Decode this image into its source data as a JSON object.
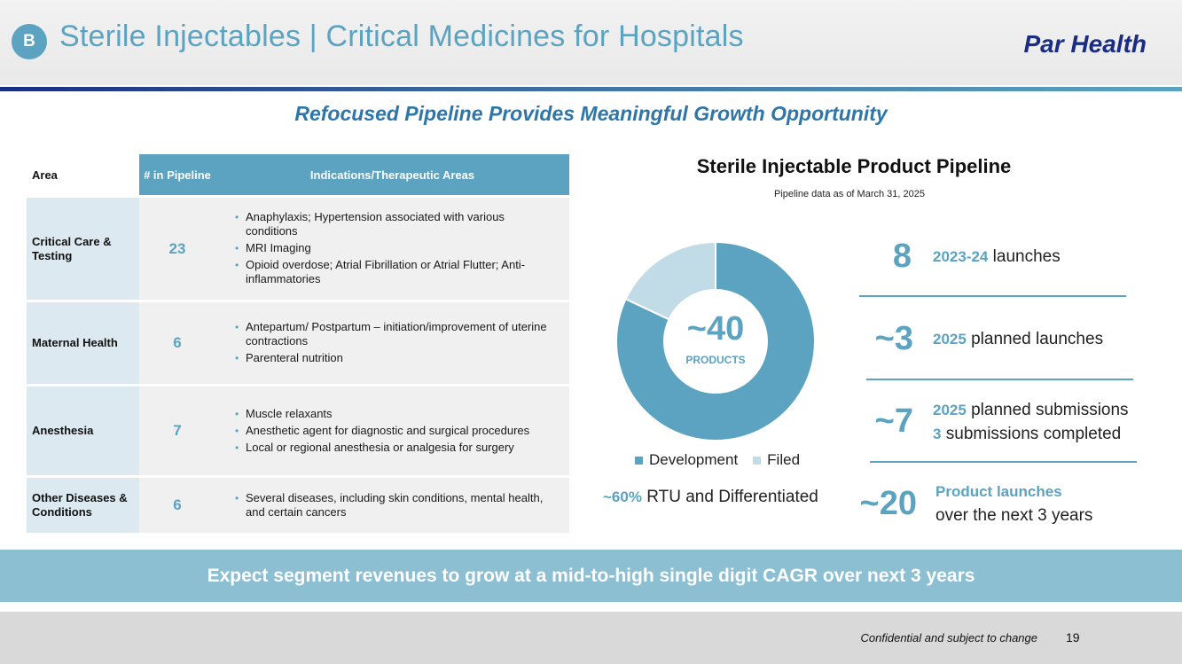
{
  "header": {
    "badge": "B",
    "title": "Sterile Injectables | Critical Medicines for Hospitals",
    "brand": "Par Health"
  },
  "subtitle": "Refocused Pipeline Provides Meaningful Growth Opportunity",
  "table": {
    "headers": {
      "area": "Area",
      "num": "# in Pipeline",
      "indications": "Indications/Therapeutic Areas"
    },
    "rows": [
      {
        "area": "Critical Care & Testing",
        "num": "23",
        "bullets": [
          "Anaphylaxis; Hypertension associated with various conditions",
          "MRI Imaging",
          "Opioid overdose; Atrial Fibrillation or Atrial Flutter; Anti-inflammatories"
        ]
      },
      {
        "area": "Maternal Health",
        "num": "6",
        "bullets": [
          "Antepartum/ Postpartum – initiation/improvement of uterine contractions",
          "Parenteral nutrition"
        ]
      },
      {
        "area": "Anesthesia",
        "num": "7",
        "bullets": [
          "Muscle relaxants",
          "Anesthetic agent for diagnostic and surgical procedures",
          "Local or regional anesthesia or analgesia for surgery"
        ]
      },
      {
        "area": "Other Diseases & Conditions",
        "num": "6",
        "bullets": [
          "Several diseases, including skin conditions, mental health, and certain cancers"
        ]
      }
    ]
  },
  "chart_data": {
    "type": "pie",
    "title": "Sterile Injectable Product Pipeline",
    "subtitle": "Pipeline data as of March 31, 2025",
    "center_value": "~40",
    "center_label": "PRODUCTS",
    "categories": [
      "Development",
      "Filed"
    ],
    "values": [
      82,
      18
    ],
    "colors": [
      "#5ba3c0",
      "#c2dce7"
    ],
    "legend_position": "bottom"
  },
  "rtu": {
    "value": "~60%",
    "text": "RTU and Differentiated"
  },
  "stats": [
    {
      "num": "8",
      "hl": "2023-24",
      "text": "launches"
    },
    {
      "num": "~3",
      "hl": "2025",
      "text": "planned launches"
    },
    {
      "num": "~7",
      "hl": "2025",
      "text": "planned submissions",
      "hl2": "3",
      "text2": "submissions completed"
    },
    {
      "num": "~20",
      "hl": "Product launches",
      "text": "over the next 3 years"
    }
  ],
  "banner": "Expect segment revenues to grow at a mid-to-high single digit CAGR over next 3 years",
  "footer": {
    "confidential": "Confidential and subject to change",
    "page": "19"
  },
  "colors": {
    "accent": "#5ba3c0",
    "navy": "#1b2c83",
    "light": "#c2dce7"
  }
}
